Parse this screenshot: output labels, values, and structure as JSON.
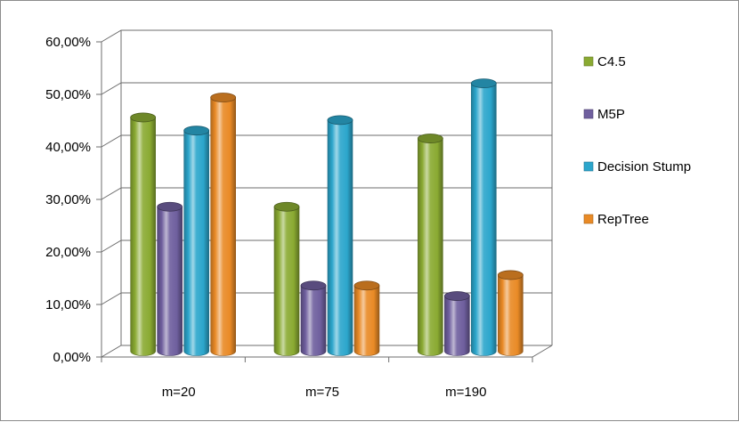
{
  "chart_data": {
    "type": "bar",
    "title": "",
    "xlabel": "",
    "ylabel": "",
    "categories": [
      "m=20",
      "m=75",
      "m=190"
    ],
    "series": [
      {
        "name": "C4.5",
        "values": [
          44.5,
          27.5,
          40.5
        ],
        "color": "#8aaa32"
      },
      {
        "name": "M5P",
        "values": [
          27.5,
          12.5,
          10.5
        ],
        "color": "#6f5f9e"
      },
      {
        "name": "Decision Stump",
        "values": [
          42.0,
          44.0,
          51.0
        ],
        "color": "#2ca6cc"
      },
      {
        "name": "RepTree",
        "values": [
          48.3,
          12.5,
          14.5
        ],
        "color": "#e98a26"
      }
    ],
    "yticks": [
      "0,00%",
      "10,00%",
      "20,00%",
      "30,00%",
      "40,00%",
      "50,00%",
      "60,00%"
    ],
    "ylim": [
      0,
      60
    ],
    "grid": true,
    "legend_position": "right"
  }
}
